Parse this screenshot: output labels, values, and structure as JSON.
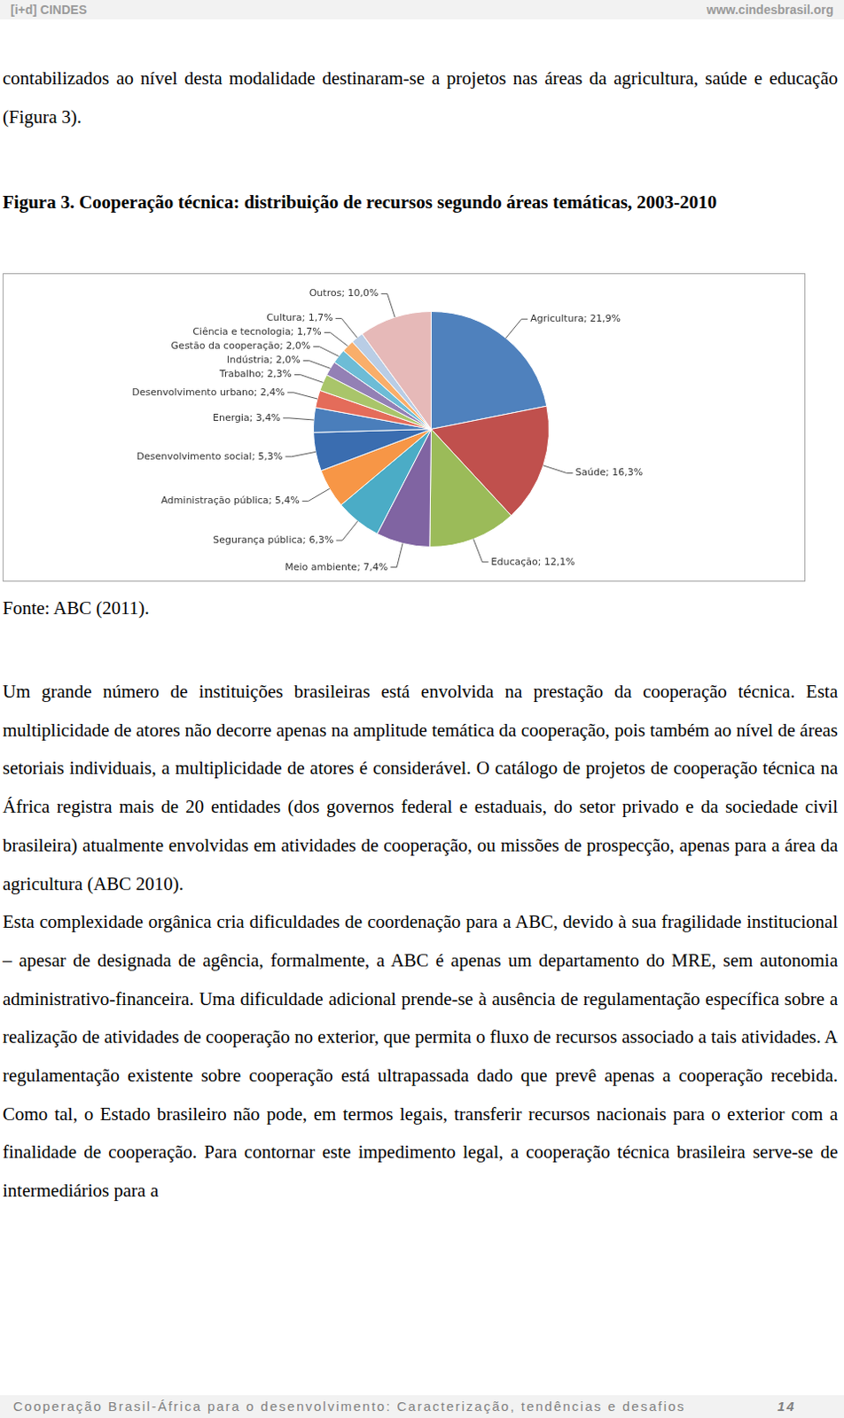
{
  "header": {
    "logo": "[i+d] CINDES",
    "url": "www.cindesbrasil.org"
  },
  "paragraphs_before": [
    "contabilizados ao nível desta modalidade destinaram-se a projetos nas áreas da agricultura, saúde e educação (Figura 3)."
  ],
  "figure": {
    "caption": "Figura 3. Cooperação técnica: distribuição de recursos segundo áreas temáticas, 2003-2010",
    "source": "Fonte: ABC (2011)."
  },
  "chart_data": {
    "type": "pie",
    "categories": [
      "Agricultura; 21,9%",
      "Saúde; 16,3%",
      "Educação; 12,1%",
      "Meio ambiente; 7,4%",
      "Segurança pública; 6,3%",
      "Administração pública; 5,4%",
      "Desenvolvimento social; 5,3%",
      "Energia; 3,4%",
      "Desenvolvimento urbano; 2,4%",
      "Trabalho; 2,3%",
      "Indústria; 2,0%",
      "Gestão da cooperação; 2,0%",
      "Ciência e tecnologia; 1,7%",
      "Cultura; 1,7%",
      "Outros; 10,0%"
    ],
    "values": [
      21.9,
      16.3,
      12.1,
      7.4,
      6.3,
      5.4,
      5.3,
      3.4,
      2.4,
      2.3,
      2.0,
      2.0,
      1.7,
      1.7,
      10.0
    ],
    "colors": [
      "#4f81bd",
      "#c0504d",
      "#9bbb59",
      "#8064a2",
      "#4bacc6",
      "#f79646",
      "#3a6db0",
      "#4a7ebb",
      "#e46c5a",
      "#a9c56a",
      "#9380b5",
      "#6dbcd6",
      "#f9ae6a",
      "#b9cde5",
      "#e6b9b8"
    ],
    "legend": false
  },
  "paragraphs_after": [
    "Um grande número de instituições brasileiras está envolvida na prestação da cooperação técnica. Esta multiplicidade de atores não decorre apenas na amplitude temática da cooperação, pois também ao nível de áreas setoriais individuais, a multiplicidade de atores é considerável. O catálogo de projetos de cooperação técnica na África registra mais de 20 entidades (dos governos federal e estaduais, do setor privado e da sociedade civil brasileira) atualmente envolvidas em atividades de cooperação, ou missões de prospecção, apenas para a área da agricultura (ABC 2010).",
    "Esta complexidade orgânica cria dificuldades de coordenação para a ABC, devido à sua fragilidade institucional – apesar de designada de agência, formalmente, a ABC é apenas um departamento do MRE, sem autonomia administrativo-financeira. Uma dificuldade adicional prende-se à ausência de regulamentação específica sobre a realização de atividades de cooperação no exterior, que permita o fluxo de recursos associado a tais atividades. A regulamentação existente sobre cooperação está ultrapassada dado que prevê apenas a cooperação recebida. Como tal, o Estado brasileiro não pode, em termos legais, transferir recursos nacionais para o exterior com a finalidade de cooperação. Para contornar este impedimento legal, a cooperação técnica brasileira serve-se de intermediários para a"
  ],
  "footer": {
    "title": "Cooperação Brasil-África para o desenvolvimento: Caracterização, tendências e desafios",
    "page": "14"
  }
}
